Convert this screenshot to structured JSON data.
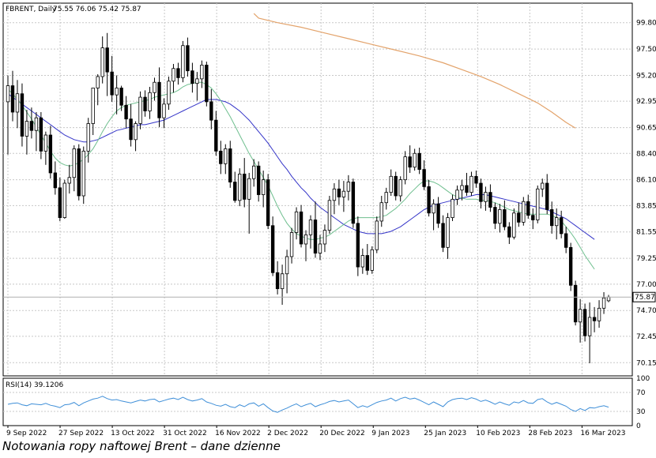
{
  "chart_data": {
    "type": "candlestick",
    "symbol_header": "FBRENT, Daily",
    "ohlc_header": "75.55 76.06 75.42 75.87",
    "last_price": "75.87",
    "price_ticks": [
      "99.80",
      "97.50",
      "95.20",
      "92.95",
      "90.65",
      "88.40",
      "86.10",
      "83.85",
      "81.55",
      "79.25",
      "77.00",
      "74.70",
      "72.45",
      "70.15"
    ],
    "date_ticks": [
      "9 Sep 2022",
      "27 Sep 2022",
      "13 Oct 2022",
      "31 Oct 2022",
      "16 Nov 2022",
      "2 Dec 2022",
      "20 Dec 2022",
      "9 Jan 2023",
      "25 Jan 2023",
      "10 Feb 2023",
      "28 Feb 2023",
      "16 Mar 2023"
    ],
    "ylim": [
      69.0,
      101.5
    ],
    "candles": [
      [
        92.9,
        95.2,
        88.3,
        94.3
      ],
      [
        94.3,
        95.6,
        91.2,
        92.0
      ],
      [
        92.0,
        94.8,
        90.6,
        93.6
      ],
      [
        93.6,
        94.5,
        89.0,
        89.9
      ],
      [
        89.9,
        92.2,
        88.3,
        91.2
      ],
      [
        91.2,
        92.4,
        89.7,
        90.4
      ],
      [
        90.4,
        92.0,
        88.6,
        91.5
      ],
      [
        91.5,
        92.0,
        87.9,
        88.6
      ],
      [
        88.6,
        90.3,
        87.4,
        90.0
      ],
      [
        90.0,
        90.8,
        86.2,
        86.7
      ],
      [
        86.7,
        87.7,
        84.8,
        85.4
      ],
      [
        85.4,
        86.3,
        82.5,
        82.8
      ],
      [
        82.8,
        86.1,
        82.7,
        85.8
      ],
      [
        85.8,
        87.4,
        84.9,
        86.3
      ],
      [
        86.3,
        89.1,
        85.1,
        88.8
      ],
      [
        88.8,
        89.2,
        84.3,
        84.7
      ],
      [
        84.7,
        89.0,
        84.0,
        88.6
      ],
      [
        88.6,
        91.5,
        87.6,
        91.0
      ],
      [
        91.0,
        94.1,
        90.0,
        94.1
      ],
      [
        94.1,
        95.3,
        92.6,
        95.1
      ],
      [
        95.1,
        98.6,
        94.5,
        97.6
      ],
      [
        97.6,
        98.9,
        93.4,
        95.5
      ],
      [
        95.5,
        96.9,
        92.9,
        93.5
      ],
      [
        93.5,
        95.2,
        91.8,
        94.1
      ],
      [
        94.1,
        94.3,
        92.1,
        92.6
      ],
      [
        92.6,
        93.4,
        90.6,
        91.4
      ],
      [
        91.4,
        92.7,
        89.0,
        89.6
      ],
      [
        89.6,
        91.2,
        88.6,
        91.0
      ],
      [
        91.0,
        93.8,
        90.5,
        93.3
      ],
      [
        93.3,
        93.9,
        91.6,
        92.1
      ],
      [
        92.1,
        94.2,
        91.4,
        93.7
      ],
      [
        93.7,
        95.0,
        93.0,
        94.6
      ],
      [
        94.6,
        95.9,
        90.7,
        91.5
      ],
      [
        91.5,
        93.2,
        90.6,
        92.7
      ],
      [
        92.7,
        95.1,
        92.2,
        94.7
      ],
      [
        94.7,
        96.2,
        93.7,
        95.8
      ],
      [
        95.8,
        96.3,
        94.4,
        95.0
      ],
      [
        95.0,
        98.2,
        94.6,
        97.8
      ],
      [
        97.8,
        98.5,
        95.1,
        95.6
      ],
      [
        95.6,
        96.3,
        93.7,
        94.5
      ],
      [
        94.5,
        95.5,
        93.0,
        94.9
      ],
      [
        94.9,
        96.5,
        94.1,
        96.1
      ],
      [
        96.1,
        96.4,
        92.5,
        92.9
      ],
      [
        92.9,
        94.0,
        90.5,
        91.3
      ],
      [
        91.3,
        92.1,
        88.2,
        88.6
      ],
      [
        88.6,
        89.5,
        86.6,
        87.5
      ],
      [
        87.5,
        89.2,
        86.6,
        88.8
      ],
      [
        88.8,
        89.5,
        85.4,
        85.9
      ],
      [
        85.9,
        86.8,
        84.1,
        84.3
      ],
      [
        84.3,
        87.1,
        83.8,
        86.6
      ],
      [
        86.6,
        88.0,
        83.7,
        84.4
      ],
      [
        84.4,
        86.7,
        81.4,
        86.2
      ],
      [
        86.2,
        87.9,
        85.5,
        87.3
      ],
      [
        87.3,
        87.7,
        84.2,
        84.8
      ],
      [
        84.8,
        86.9,
        83.7,
        86.1
      ],
      [
        86.1,
        86.6,
        81.8,
        82.1
      ],
      [
        82.1,
        82.9,
        77.7,
        78.0
      ],
      [
        78.0,
        79.0,
        76.1,
        76.6
      ],
      [
        76.6,
        78.7,
        75.2,
        77.9
      ],
      [
        77.9,
        80.0,
        76.2,
        79.4
      ],
      [
        79.4,
        81.9,
        78.8,
        81.5
      ],
      [
        81.5,
        83.7,
        80.9,
        83.3
      ],
      [
        83.3,
        83.9,
        80.2,
        80.5
      ],
      [
        80.5,
        81.7,
        79.0,
        81.3
      ],
      [
        81.3,
        83.0,
        80.1,
        82.6
      ],
      [
        82.6,
        84.2,
        79.3,
        79.7
      ],
      [
        79.7,
        81.3,
        79.1,
        80.5
      ],
      [
        80.5,
        82.2,
        79.8,
        81.7
      ],
      [
        81.7,
        84.7,
        81.4,
        84.3
      ],
      [
        84.3,
        85.8,
        83.1,
        85.3
      ],
      [
        85.3,
        86.1,
        83.9,
        84.6
      ],
      [
        84.6,
        86.0,
        83.3,
        85.1
      ],
      [
        85.1,
        86.5,
        84.3,
        85.9
      ],
      [
        85.9,
        86.2,
        81.9,
        82.3
      ],
      [
        82.3,
        82.9,
        77.7,
        78.5
      ],
      [
        78.5,
        80.1,
        77.9,
        79.5
      ],
      [
        79.5,
        80.5,
        77.8,
        78.2
      ],
      [
        78.2,
        80.3,
        77.9,
        80.0
      ],
      [
        80.0,
        82.9,
        79.7,
        82.5
      ],
      [
        82.5,
        84.7,
        82.0,
        84.1
      ],
      [
        84.1,
        85.4,
        83.5,
        85.0
      ],
      [
        85.0,
        87.0,
        84.7,
        86.4
      ],
      [
        86.4,
        86.8,
        84.3,
        84.7
      ],
      [
        84.7,
        86.4,
        84.2,
        86.1
      ],
      [
        86.1,
        88.6,
        85.7,
        88.1
      ],
      [
        88.1,
        89.1,
        86.7,
        87.2
      ],
      [
        87.2,
        88.8,
        86.9,
        88.4
      ],
      [
        88.4,
        88.9,
        86.6,
        87.0
      ],
      [
        87.0,
        87.8,
        85.2,
        85.5
      ],
      [
        85.5,
        86.1,
        82.9,
        83.2
      ],
      [
        83.2,
        84.4,
        81.7,
        84.0
      ],
      [
        84.0,
        84.6,
        81.9,
        82.3
      ],
      [
        82.3,
        83.0,
        79.8,
        80.2
      ],
      [
        80.2,
        83.2,
        79.2,
        82.8
      ],
      [
        82.8,
        84.8,
        82.5,
        84.4
      ],
      [
        84.4,
        85.6,
        83.9,
        85.2
      ],
      [
        85.2,
        86.1,
        84.3,
        85.6
      ],
      [
        85.6,
        86.7,
        84.7,
        85.0
      ],
      [
        85.0,
        86.8,
        84.7,
        86.4
      ],
      [
        86.4,
        86.9,
        85.4,
        85.8
      ],
      [
        85.8,
        86.2,
        83.6,
        84.2
      ],
      [
        84.2,
        85.5,
        83.4,
        85.0
      ],
      [
        85.0,
        85.7,
        83.3,
        83.7
      ],
      [
        83.7,
        84.1,
        81.8,
        82.3
      ],
      [
        82.3,
        84.0,
        81.5,
        83.5
      ],
      [
        83.5,
        84.3,
        81.7,
        82.0
      ],
      [
        82.0,
        82.4,
        80.5,
        81.1
      ],
      [
        81.1,
        83.6,
        80.9,
        83.2
      ],
      [
        83.2,
        84.1,
        82.0,
        82.4
      ],
      [
        82.4,
        84.6,
        82.1,
        84.2
      ],
      [
        84.2,
        84.8,
        82.7,
        83.0
      ],
      [
        83.0,
        83.6,
        81.8,
        82.6
      ],
      [
        82.6,
        85.6,
        82.3,
        85.3
      ],
      [
        85.3,
        86.2,
        84.6,
        85.8
      ],
      [
        85.8,
        86.6,
        83.1,
        83.5
      ],
      [
        83.5,
        84.2,
        81.4,
        82.1
      ],
      [
        82.1,
        83.6,
        80.9,
        82.8
      ],
      [
        82.8,
        83.4,
        81.0,
        81.4
      ],
      [
        81.4,
        82.0,
        79.7,
        80.2
      ],
      [
        80.2,
        80.6,
        76.4,
        76.9
      ],
      [
        76.9,
        77.3,
        73.4,
        73.7
      ],
      [
        73.7,
        75.7,
        71.9,
        74.8
      ],
      [
        74.8,
        75.3,
        72.0,
        72.5
      ],
      [
        72.5,
        75.4,
        70.1,
        74.1
      ],
      [
        74.1,
        75.0,
        72.8,
        73.8
      ],
      [
        73.8,
        75.6,
        73.2,
        74.9
      ],
      [
        74.9,
        76.3,
        74.4,
        75.8
      ],
      [
        75.55,
        76.06,
        75.42,
        75.87
      ]
    ],
    "ma_fast": [
      94.0,
      93.6,
      93.1,
      92.6,
      92.0,
      91.4,
      90.7,
      90.0,
      89.3,
      88.6,
      88.0,
      87.6,
      87.4,
      87.3,
      87.4,
      87.6,
      87.9,
      88.3,
      88.8,
      89.5,
      90.3,
      91.0,
      91.6,
      92.1,
      92.4,
      92.6,
      92.7,
      92.8,
      92.9,
      93.0,
      93.1,
      93.3,
      93.4,
      93.5,
      93.6,
      93.7,
      93.9,
      94.2,
      94.4,
      94.5,
      94.6,
      94.6,
      94.4,
      94.1,
      93.6,
      93.0,
      92.3,
      91.6,
      90.8,
      90.0,
      89.2,
      88.4,
      87.7,
      87.0,
      86.3,
      85.6,
      84.7,
      83.8,
      83.0,
      82.3,
      81.8,
      81.4,
      81.2,
      81.0,
      80.9,
      80.9,
      81.0,
      81.1,
      81.3,
      81.6,
      81.9,
      82.2,
      82.5,
      82.7,
      82.8,
      82.8,
      82.8,
      82.8,
      82.8,
      82.9,
      83.0,
      83.3,
      83.6,
      84.0,
      84.4,
      84.9,
      85.3,
      85.7,
      86.0,
      86.0,
      85.9,
      85.7,
      85.4,
      85.1,
      84.8,
      84.6,
      84.5,
      84.4,
      84.4,
      84.4,
      84.3,
      84.3,
      84.2,
      84.1,
      83.9,
      83.7,
      83.5,
      83.4,
      83.3,
      83.2,
      83.1,
      83.1,
      83.1,
      83.1,
      83.1,
      83.0,
      82.8,
      82.5,
      82.0,
      81.5,
      80.9,
      80.2,
      79.5,
      78.9,
      78.3
    ],
    "ma_slow": [
      93.6,
      93.3,
      93.0,
      92.7,
      92.4,
      92.1,
      91.8,
      91.5,
      91.2,
      90.9,
      90.6,
      90.3,
      90.0,
      89.8,
      89.6,
      89.5,
      89.4,
      89.4,
      89.5,
      89.6,
      89.8,
      90.0,
      90.2,
      90.4,
      90.5,
      90.6,
      90.7,
      90.8,
      90.9,
      90.9,
      91.0,
      91.1,
      91.2,
      91.3,
      91.5,
      91.7,
      91.9,
      92.1,
      92.3,
      92.5,
      92.7,
      92.9,
      93.1,
      93.1,
      93.1,
      93.0,
      92.9,
      92.7,
      92.4,
      92.1,
      91.7,
      91.3,
      90.8,
      90.3,
      89.8,
      89.3,
      88.7,
      88.1,
      87.5,
      87.0,
      86.4,
      85.9,
      85.4,
      85.0,
      84.5,
      84.1,
      83.7,
      83.4,
      83.1,
      82.8,
      82.5,
      82.2,
      82.0,
      81.8,
      81.6,
      81.5,
      81.4,
      81.4,
      81.4,
      81.4,
      81.5,
      81.6,
      81.8,
      82.0,
      82.3,
      82.6,
      82.9,
      83.2,
      83.5,
      83.7,
      83.9,
      84.0,
      84.1,
      84.2,
      84.3,
      84.4,
      84.5,
      84.6,
      84.7,
      84.8,
      84.8,
      84.8,
      84.7,
      84.6,
      84.5,
      84.4,
      84.3,
      84.2,
      84.1,
      84.0,
      83.9,
      83.8,
      83.7,
      83.6,
      83.5,
      83.3,
      83.1,
      82.9,
      82.7,
      82.4,
      82.1,
      81.8,
      81.5,
      81.2,
      80.9
    ],
    "ma_long": [
      [
        52,
        100.6
      ],
      [
        53,
        100.2
      ],
      [
        57,
        99.8
      ],
      [
        62,
        99.4
      ],
      [
        67,
        98.9
      ],
      [
        72,
        98.4
      ],
      [
        77,
        97.9
      ],
      [
        82,
        97.4
      ],
      [
        87,
        96.9
      ],
      [
        92,
        96.3
      ],
      [
        96,
        95.7
      ],
      [
        100,
        95.1
      ],
      [
        104,
        94.4
      ],
      [
        108,
        93.6
      ],
      [
        112,
        92.8
      ],
      [
        115,
        92.0
      ],
      [
        118,
        91.1
      ],
      [
        120,
        90.6
      ]
    ],
    "rsi_header": "RSI(14) 39.1206",
    "rsi_ticks": [
      "100",
      "70",
      "30",
      "0"
    ],
    "rsi_ylim": [
      0,
      100
    ],
    "rsi": [
      45,
      47,
      48,
      44,
      42,
      46,
      45,
      44,
      47,
      43,
      41,
      38,
      44,
      45,
      49,
      42,
      48,
      52,
      56,
      58,
      62,
      57,
      54,
      55,
      52,
      50,
      48,
      51,
      54,
      52,
      55,
      56,
      50,
      53,
      56,
      58,
      55,
      60,
      55,
      52,
      54,
      57,
      50,
      47,
      43,
      41,
      45,
      40,
      38,
      44,
      40,
      46,
      48,
      41,
      46,
      38,
      31,
      28,
      33,
      37,
      42,
      46,
      40,
      44,
      47,
      40,
      44,
      47,
      51,
      53,
      50,
      52,
      54,
      46,
      38,
      42,
      39,
      44,
      49,
      52,
      54,
      58,
      52,
      57,
      60,
      56,
      58,
      54,
      49,
      44,
      50,
      45,
      40,
      50,
      55,
      57,
      58,
      55,
      59,
      56,
      51,
      54,
      50,
      45,
      50,
      46,
      43,
      50,
      48,
      53,
      48,
      47,
      55,
      57,
      50,
      45,
      49,
      45,
      41,
      34,
      30,
      36,
      32,
      38,
      37,
      40,
      42,
      39
    ]
  },
  "caption": "Notowania ropy naftowej Brent – dane dzienne"
}
